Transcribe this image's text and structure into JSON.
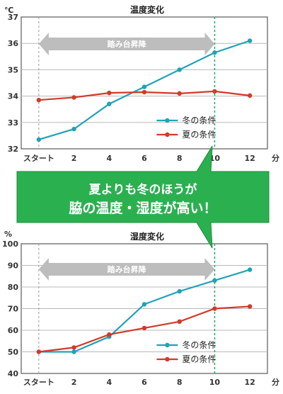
{
  "callout": {
    "line1": "夏よりも冬のほうが",
    "line2": "脇の温度・湿度が高い！",
    "color": "#2bb04f"
  },
  "colors": {
    "winter": "#1fa3b8",
    "summer": "#d23a2a",
    "arrow": "#bdbdbd",
    "marker": "#1fa85a"
  },
  "chart_data": [
    {
      "type": "line",
      "title": "温度変化",
      "unit_y": "℃",
      "unit_x": "分",
      "x_tick_labels": [
        "スタート",
        "2",
        "4",
        "6",
        "8",
        "10",
        "12"
      ],
      "x": [
        0,
        2,
        4,
        6,
        8,
        10,
        12
      ],
      "xlim": [
        -1,
        13
      ],
      "ylim": [
        32,
        37
      ],
      "yticks": [
        32,
        33,
        34,
        35,
        36,
        37
      ],
      "grid": true,
      "legend_placement": "bottom-right",
      "series": [
        {
          "name": "冬の条件",
          "color": "#1fa3b8",
          "values": [
            32.35,
            32.75,
            33.7,
            34.35,
            35.0,
            35.65,
            36.1
          ]
        },
        {
          "name": "夏の条件",
          "color": "#d23a2a",
          "values": [
            33.85,
            33.95,
            34.12,
            34.15,
            34.1,
            34.18,
            34.02
          ]
        }
      ],
      "annotation": {
        "label": "踏み台昇降",
        "from_x": 0,
        "to_x": 10
      }
    },
    {
      "type": "line",
      "title": "湿度変化",
      "unit_y": "%",
      "unit_x": "分",
      "x_tick_labels": [
        "スタート",
        "2",
        "4",
        "6",
        "8",
        "10",
        "12"
      ],
      "x": [
        0,
        2,
        4,
        6,
        8,
        10,
        12
      ],
      "xlim": [
        -1,
        13
      ],
      "ylim": [
        40,
        100
      ],
      "yticks": [
        40,
        50,
        60,
        70,
        80,
        90,
        100
      ],
      "grid": true,
      "legend_placement": "bottom-right",
      "series": [
        {
          "name": "冬の条件",
          "color": "#1fa3b8",
          "values": [
            50,
            50,
            57,
            72,
            78,
            83,
            88
          ]
        },
        {
          "name": "夏の条件",
          "color": "#d23a2a",
          "values": [
            50,
            52,
            58,
            61,
            64,
            70,
            71
          ]
        }
      ],
      "annotation": {
        "label": "踏み台昇降",
        "from_x": 0,
        "to_x": 10
      }
    }
  ]
}
